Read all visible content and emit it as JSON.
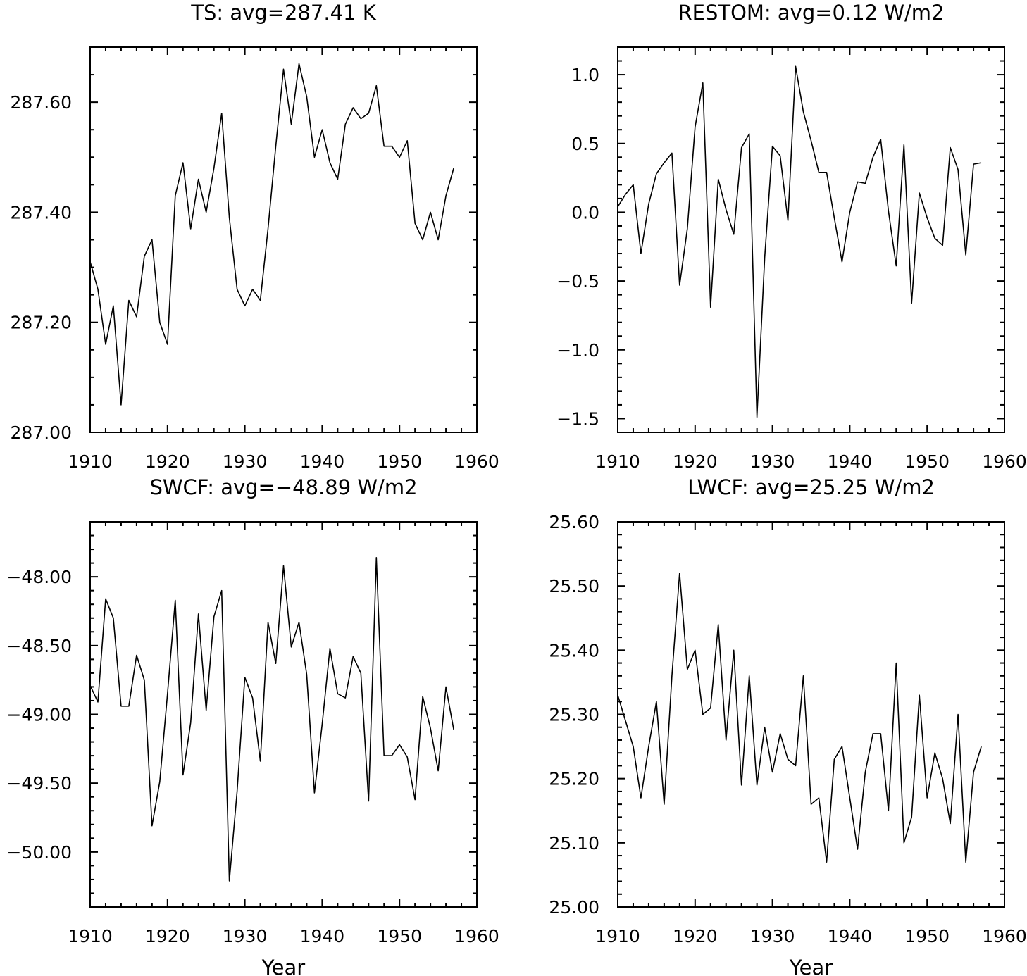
{
  "chart_data": [
    {
      "type": "line",
      "title": "TS: avg=287.41 K",
      "xlabel": "",
      "ylabel": "",
      "xlim": [
        1910,
        1960
      ],
      "ylim": [
        287.0,
        287.7
      ],
      "xticks": [
        1910,
        1920,
        1930,
        1940,
        1950,
        1960
      ],
      "xtick_labels": [
        "1910",
        "1920",
        "1930",
        "1940",
        "1950",
        "1960"
      ],
      "yticks": [
        287.0,
        287.2,
        287.4,
        287.6
      ],
      "ytick_labels": [
        "287.00",
        "287.20",
        "287.40",
        "287.60"
      ],
      "y_minor_step": 0.05,
      "grid": false,
      "x": [
        1910,
        1911,
        1912,
        1913,
        1914,
        1915,
        1916,
        1917,
        1918,
        1919,
        1920,
        1921,
        1922,
        1923,
        1924,
        1925,
        1926,
        1927,
        1928,
        1929,
        1930,
        1931,
        1932,
        1933,
        1934,
        1935,
        1936,
        1937,
        1938,
        1939,
        1940,
        1941,
        1942,
        1943,
        1944,
        1945,
        1946,
        1947,
        1948,
        1949,
        1950,
        1951,
        1952,
        1953,
        1954,
        1955,
        1956,
        1957
      ],
      "series": [
        {
          "values": [
            287.31,
            287.26,
            287.16,
            287.23,
            287.05,
            287.24,
            287.21,
            287.32,
            287.35,
            287.2,
            287.16,
            287.43,
            287.49,
            287.37,
            287.46,
            287.4,
            287.48,
            287.58,
            287.39,
            287.26,
            287.23,
            287.26,
            287.24,
            287.37,
            287.52,
            287.66,
            287.56,
            287.67,
            287.61,
            287.5,
            287.55,
            287.49,
            287.46,
            287.56,
            287.59,
            287.57,
            287.58,
            287.63,
            287.52,
            287.52,
            287.5,
            287.53,
            287.38,
            287.35,
            287.4,
            287.35,
            287.43,
            287.48
          ]
        }
      ]
    },
    {
      "type": "line",
      "title": "RESTOM: avg=0.12 W/m2",
      "xlabel": "",
      "ylabel": "",
      "xlim": [
        1910,
        1960
      ],
      "ylim": [
        -1.6,
        1.2
      ],
      "xticks": [
        1910,
        1920,
        1930,
        1940,
        1950,
        1960
      ],
      "xtick_labels": [
        "1910",
        "1920",
        "1930",
        "1940",
        "1950",
        "1960"
      ],
      "yticks": [
        -1.5,
        -1.0,
        -0.5,
        0.0,
        0.5,
        1.0
      ],
      "ytick_labels": [
        "−1.5",
        "−1.0",
        "−0.5",
        "0.0",
        "0.5",
        "1.0"
      ],
      "y_minor_step": 0.1,
      "grid": false,
      "x": [
        1910,
        1911,
        1912,
        1913,
        1914,
        1915,
        1916,
        1917,
        1918,
        1919,
        1920,
        1921,
        1922,
        1923,
        1924,
        1925,
        1926,
        1927,
        1928,
        1929,
        1930,
        1931,
        1932,
        1933,
        1934,
        1935,
        1936,
        1937,
        1938,
        1939,
        1940,
        1941,
        1942,
        1943,
        1944,
        1945,
        1946,
        1947,
        1948,
        1949,
        1950,
        1951,
        1952,
        1953,
        1954,
        1955,
        1956,
        1957
      ],
      "series": [
        {
          "values": [
            0.04,
            0.13,
            0.2,
            -0.3,
            0.06,
            0.28,
            0.36,
            0.43,
            -0.53,
            -0.12,
            0.62,
            0.94,
            -0.69,
            0.24,
            0.02,
            -0.16,
            0.47,
            0.57,
            -1.49,
            -0.33,
            0.48,
            0.41,
            -0.06,
            1.06,
            0.73,
            0.52,
            0.29,
            0.29,
            -0.04,
            -0.36,
            0.0,
            0.22,
            0.21,
            0.4,
            0.53,
            0.01,
            -0.39,
            0.49,
            -0.66,
            0.14,
            -0.04,
            -0.19,
            -0.24,
            0.47,
            0.31,
            -0.31,
            0.35,
            0.36
          ]
        }
      ]
    },
    {
      "type": "line",
      "title": "SWCF: avg=−48.89 W/m2",
      "xlabel": "Year",
      "ylabel": "",
      "xlim": [
        1910,
        1960
      ],
      "ylim": [
        -50.4,
        -47.6
      ],
      "xticks": [
        1910,
        1920,
        1930,
        1940,
        1950,
        1960
      ],
      "xtick_labels": [
        "1910",
        "1920",
        "1930",
        "1940",
        "1950",
        "1960"
      ],
      "yticks": [
        -50.0,
        -49.5,
        -49.0,
        -48.5,
        -48.0
      ],
      "ytick_labels": [
        "−50.00",
        "−49.50",
        "−49.00",
        "−48.50",
        "−48.00"
      ],
      "y_minor_step": 0.1,
      "grid": false,
      "x": [
        1910,
        1911,
        1912,
        1913,
        1914,
        1915,
        1916,
        1917,
        1918,
        1919,
        1920,
        1921,
        1922,
        1923,
        1924,
        1925,
        1926,
        1927,
        1928,
        1929,
        1930,
        1931,
        1932,
        1933,
        1934,
        1935,
        1936,
        1937,
        1938,
        1939,
        1940,
        1941,
        1942,
        1943,
        1944,
        1945,
        1946,
        1947,
        1948,
        1949,
        1950,
        1951,
        1952,
        1953,
        1954,
        1955,
        1956,
        1957
      ],
      "series": [
        {
          "values": [
            -48.79,
            -48.91,
            -48.16,
            -48.3,
            -48.94,
            -48.94,
            -48.57,
            -48.75,
            -49.81,
            -49.49,
            -48.85,
            -48.17,
            -49.44,
            -49.06,
            -48.27,
            -48.97,
            -48.29,
            -48.1,
            -50.21,
            -49.56,
            -48.73,
            -48.88,
            -49.34,
            -48.33,
            -48.63,
            -47.92,
            -48.51,
            -48.33,
            -48.71,
            -49.57,
            -49.07,
            -48.52,
            -48.85,
            -48.88,
            -48.58,
            -48.7,
            -49.63,
            -47.86,
            -49.3,
            -49.3,
            -49.22,
            -49.31,
            -49.62,
            -48.87,
            -49.1,
            -49.41,
            -48.8,
            -49.11
          ]
        }
      ]
    },
    {
      "type": "line",
      "title": "LWCF: avg=25.25 W/m2",
      "xlabel": "Year",
      "ylabel": "",
      "xlim": [
        1910,
        1960
      ],
      "ylim": [
        25.0,
        25.6
      ],
      "xticks": [
        1910,
        1920,
        1930,
        1940,
        1950,
        1960
      ],
      "xtick_labels": [
        "1910",
        "1920",
        "1930",
        "1940",
        "1950",
        "1960"
      ],
      "yticks": [
        25.0,
        25.1,
        25.2,
        25.3,
        25.4,
        25.5,
        25.6
      ],
      "ytick_labels": [
        "25.00",
        "25.10",
        "25.20",
        "25.30",
        "25.40",
        "25.50",
        "25.60"
      ],
      "y_minor_step": 0.02,
      "grid": false,
      "x": [
        1910,
        1911,
        1912,
        1913,
        1914,
        1915,
        1916,
        1917,
        1918,
        1919,
        1920,
        1921,
        1922,
        1923,
        1924,
        1925,
        1926,
        1927,
        1928,
        1929,
        1930,
        1931,
        1932,
        1933,
        1934,
        1935,
        1936,
        1937,
        1938,
        1939,
        1940,
        1941,
        1942,
        1943,
        1944,
        1945,
        1946,
        1947,
        1948,
        1949,
        1950,
        1951,
        1952,
        1953,
        1954,
        1955,
        1956,
        1957
      ],
      "series": [
        {
          "values": [
            25.33,
            25.29,
            25.25,
            25.17,
            25.25,
            25.32,
            25.16,
            25.36,
            25.52,
            25.37,
            25.4,
            25.3,
            25.31,
            25.44,
            25.26,
            25.4,
            25.19,
            25.36,
            25.19,
            25.28,
            25.21,
            25.27,
            25.23,
            25.22,
            25.36,
            25.16,
            25.17,
            25.07,
            25.23,
            25.25,
            25.17,
            25.09,
            25.21,
            25.27,
            25.27,
            25.15,
            25.38,
            25.1,
            25.14,
            25.33,
            25.17,
            25.24,
            25.2,
            25.13,
            25.3,
            25.07,
            25.21,
            25.25
          ]
        }
      ]
    }
  ]
}
